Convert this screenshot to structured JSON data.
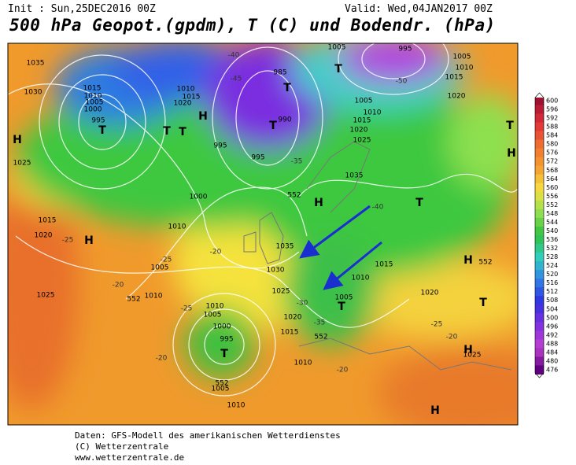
{
  "header": {
    "init": "Init : Sun,25DEC2016 00Z",
    "valid": "Valid: Wed,04JAN2017 00Z",
    "title": "500 hPa Geopot.(gpdm), T (C) und Bodendr. (hPa)"
  },
  "legend": {
    "ticks": [
      600,
      596,
      592,
      588,
      584,
      580,
      576,
      572,
      568,
      564,
      560,
      556,
      552,
      548,
      544,
      540,
      536,
      532,
      528,
      524,
      520,
      516,
      512,
      508,
      504,
      500,
      496,
      492,
      488,
      484,
      480,
      476
    ]
  },
  "map_labels": [
    "1035",
    "1030",
    "1015",
    "1010",
    "1005",
    "1000",
    "995",
    "T",
    "H",
    "1025",
    "1015",
    "1020",
    "H",
    "1025",
    "552",
    "1010",
    "1005",
    "1000",
    "1010",
    "1010",
    "1015",
    "1020",
    "985",
    "990",
    "995",
    "995",
    "T",
    "T",
    "H",
    "T",
    "T",
    "1035",
    "1030",
    "1025",
    "1020",
    "1015",
    "1010",
    "552",
    "H",
    "1035",
    "1005",
    "1010",
    "1015",
    "1020",
    "1025",
    "995",
    "1005",
    "T",
    "1005",
    "1010",
    "1015",
    "1020",
    "T",
    "H",
    "T",
    "H",
    "552",
    "1015",
    "1010",
    "1005",
    "T",
    "1020",
    "T",
    "H",
    "1025",
    "H",
    "1000",
    "995",
    "T",
    "1010",
    "1005",
    "552",
    "1005",
    "1010",
    "552",
    "-20",
    "-25",
    "-20",
    "-25",
    "-20",
    "-25",
    "-35",
    "-40",
    "-45",
    "-50",
    "-40",
    "-30",
    "-35",
    "-25",
    "-20",
    "-20"
  ],
  "footer": [
    "Daten: GFS-Modell des amerikanischen Wetterdienstes",
    "(C) Wetterzentrale",
    "www.wetterzentrale.de"
  ]
}
